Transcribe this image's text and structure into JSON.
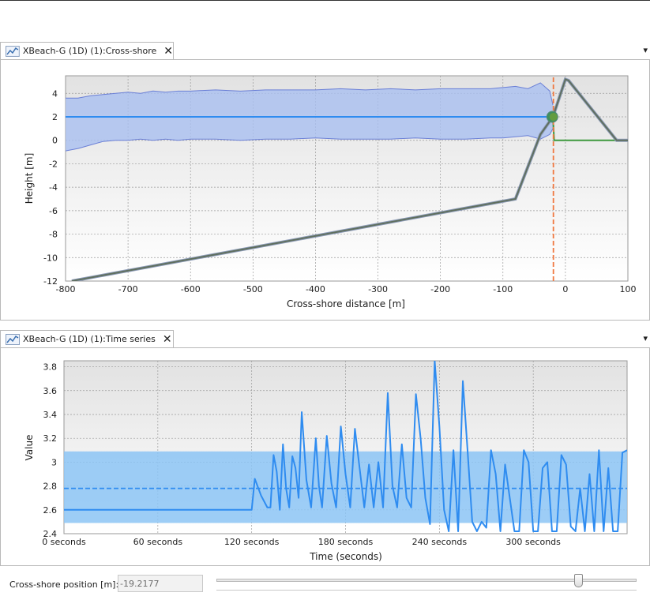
{
  "panels": {
    "cross_shore": {
      "tab_label": "XBeach-G (1D) (1):Cross-shore",
      "close_glyph": "✕",
      "overflow_glyph": "▾",
      "icon": "chart-icon"
    },
    "time_series": {
      "tab_label": "XBeach-G (1D) (1):Time series",
      "close_glyph": "✕",
      "overflow_glyph": "▾",
      "icon": "chart-icon"
    }
  },
  "controls": {
    "position_label": "Cross-shore position [m]:",
    "position_value": "-19.2177",
    "slider_fraction": 0.86
  },
  "colors": {
    "water_line": "#2f8cf0",
    "water_band": "#a9bff0",
    "water_band_edge": "#6a7fd6",
    "bed_profile": "#5f6f5f",
    "initial_bed": "#3f9a3f",
    "marker_line": "#f07840",
    "marker_dot": "#3f8f5f",
    "series_band": "#8cc4f5",
    "grid": "#9a9a9a"
  },
  "chart_data": [
    {
      "type": "area",
      "title": "",
      "xlabel": "Cross-shore distance [m]",
      "ylabel": "Height [m]",
      "xlim": [
        -800,
        100
      ],
      "ylim": [
        -12,
        5.5
      ],
      "x_ticks": [
        -800,
        -700,
        -600,
        -500,
        -400,
        -300,
        -200,
        -100,
        0,
        100
      ],
      "y_ticks": [
        -12,
        -10,
        -8,
        -6,
        -4,
        -2,
        0,
        2,
        4
      ],
      "grid": true,
      "series": [
        {
          "role": "water-level-envelope-upper",
          "x": [
            -800,
            -780,
            -760,
            -740,
            -720,
            -700,
            -680,
            -660,
            -640,
            -620,
            -600,
            -560,
            -520,
            -480,
            -440,
            -400,
            -360,
            -320,
            -280,
            -240,
            -200,
            -160,
            -120,
            -100,
            -80,
            -60,
            -40,
            -25,
            -20
          ],
          "y": [
            3.6,
            3.6,
            3.8,
            3.9,
            4.0,
            4.1,
            4.0,
            4.2,
            4.1,
            4.2,
            4.2,
            4.3,
            4.2,
            4.3,
            4.3,
            4.3,
            4.4,
            4.3,
            4.4,
            4.3,
            4.4,
            4.4,
            4.4,
            4.5,
            4.6,
            4.4,
            4.9,
            4.2,
            3.0
          ]
        },
        {
          "role": "water-level-envelope-lower",
          "x": [
            -800,
            -780,
            -760,
            -740,
            -720,
            -700,
            -680,
            -660,
            -640,
            -620,
            -600,
            -560,
            -520,
            -480,
            -440,
            -400,
            -360,
            -320,
            -280,
            -240,
            -200,
            -160,
            -120,
            -100,
            -80,
            -60,
            -40,
            -25,
            -20
          ],
          "y": [
            -0.9,
            -0.7,
            -0.4,
            -0.1,
            0.0,
            0.0,
            0.1,
            0.0,
            0.1,
            0.0,
            0.1,
            0.1,
            0.0,
            0.1,
            0.1,
            0.2,
            0.1,
            0.1,
            0.1,
            0.2,
            0.1,
            0.1,
            0.2,
            0.2,
            0.3,
            0.4,
            0.1,
            0.5,
            1.0
          ]
        },
        {
          "role": "mean-water-level",
          "x": [
            -800,
            -20
          ],
          "y": [
            2.0,
            2.0
          ]
        },
        {
          "role": "bed-profile",
          "x": [
            -790,
            -80,
            -40,
            -20,
            0,
            5,
            82,
            90,
            100
          ],
          "y": [
            -12,
            -5,
            0.5,
            2.0,
            5.2,
            5.1,
            0,
            0,
            0
          ]
        },
        {
          "role": "initial-bed-profile",
          "x": [
            -20,
            -18,
            80,
            100
          ],
          "y": [
            2.0,
            0.0,
            0.0,
            0.0
          ]
        },
        {
          "role": "selected-position-marker",
          "x": [
            -19.2177,
            -19.2177
          ],
          "y": [
            -12,
            5.5
          ]
        },
        {
          "role": "selected-point",
          "x": [
            -21,
            -19.2
          ],
          "y": [
            2.0,
            2.0
          ]
        }
      ]
    },
    {
      "type": "line",
      "title": "",
      "xlabel": "Time (seconds)",
      "ylabel": "Value",
      "xlim": [
        0,
        360
      ],
      "ylim": [
        2.4,
        3.85
      ],
      "x_ticks": [
        0,
        60,
        120,
        180,
        240,
        300
      ],
      "x_tick_labels": [
        "0 seconds",
        "60 seconds",
        "120 seconds",
        "180 seconds",
        "240 seconds",
        "300 seconds"
      ],
      "y_ticks": [
        2.4,
        2.6,
        2.8,
        3.0,
        3.2,
        3.4,
        3.6,
        3.8
      ],
      "y_tick_labels": [
        "2.4",
        "2.6",
        "2.8",
        "3",
        "3.2",
        "3.4",
        "3.6",
        "3.8"
      ],
      "grid": true,
      "band": {
        "lower": 2.49,
        "upper": 3.09
      },
      "mean": 2.78,
      "series": [
        {
          "role": "water-level-timeseries",
          "x": [
            0,
            120,
            122,
            126,
            130,
            132,
            134,
            136,
            138,
            140,
            142,
            144,
            146,
            148,
            150,
            152,
            155,
            158,
            161,
            163,
            165,
            168,
            171,
            174,
            177,
            180,
            183,
            186,
            189,
            192,
            195,
            198,
            201,
            204,
            207,
            210,
            213,
            216,
            219,
            222,
            225,
            228,
            231,
            234,
            237,
            240,
            243,
            246,
            249,
            252,
            255,
            258,
            261,
            264,
            267,
            270,
            273,
            276,
            279,
            282,
            285,
            288,
            291,
            294,
            297,
            300,
            303,
            306,
            309,
            312,
            315,
            318,
            321,
            324,
            327,
            330,
            333,
            336,
            339,
            342,
            345,
            348,
            351,
            354,
            357,
            360
          ],
          "y": [
            2.6,
            2.6,
            2.86,
            2.72,
            2.62,
            2.62,
            3.06,
            2.92,
            2.6,
            3.15,
            2.78,
            2.62,
            3.05,
            2.95,
            2.7,
            3.42,
            2.85,
            2.62,
            3.2,
            2.8,
            2.62,
            3.22,
            2.82,
            2.62,
            3.3,
            2.9,
            2.62,
            3.28,
            2.95,
            2.62,
            2.98,
            2.62,
            3.0,
            2.62,
            3.58,
            2.8,
            2.62,
            3.15,
            2.7,
            2.62,
            3.57,
            3.2,
            2.7,
            2.48,
            3.85,
            3.3,
            2.6,
            2.42,
            3.1,
            2.42,
            3.68,
            3.1,
            2.5,
            2.42,
            2.5,
            2.45,
            3.1,
            2.9,
            2.42,
            2.98,
            2.7,
            2.42,
            2.42,
            3.1,
            3.0,
            2.42,
            2.42,
            2.95,
            3.0,
            2.42,
            2.42,
            3.06,
            2.98,
            2.46,
            2.42,
            2.78,
            2.42,
            2.9,
            2.42,
            3.1,
            2.42,
            2.95,
            2.42,
            2.42,
            3.08,
            3.1
          ]
        }
      ]
    }
  ]
}
